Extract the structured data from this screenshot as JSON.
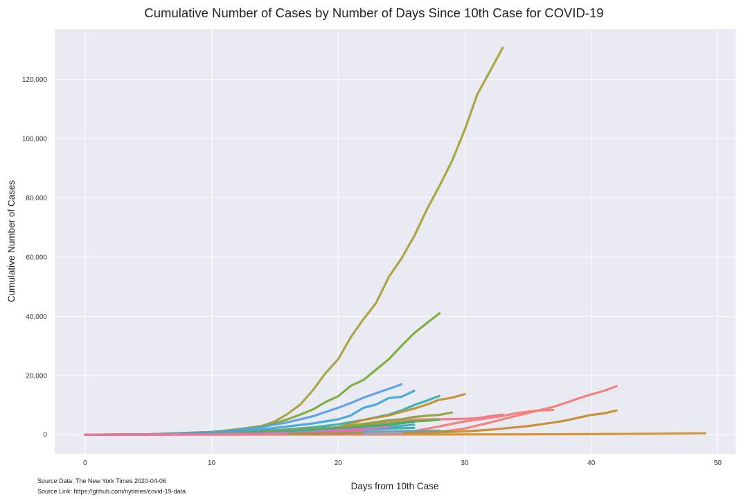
{
  "chart_data": {
    "type": "line",
    "title": "Cumulative Number of Cases by Number of Days Since 10th Case for COVID-19",
    "xlabel": "Days from 10th Case",
    "ylabel": "Cumulative Number of Cases",
    "xlim": [
      -2.4,
      51.4
    ],
    "ylim": [
      -6500,
      137000
    ],
    "x_ticks": [
      0,
      10,
      20,
      30,
      40,
      50
    ],
    "y_ticks": [
      0,
      20000,
      40000,
      60000,
      80000,
      100000,
      120000
    ],
    "y_tick_labels": [
      "0",
      "20,000",
      "40,000",
      "60,000",
      "80,000",
      "100,000",
      "120,000"
    ],
    "grid": true,
    "legend": "none",
    "background": "#eaeaf2",
    "series": [
      {
        "color": "#d28e2c",
        "x": [
          0,
          5,
          10,
          15,
          20,
          25,
          30,
          35,
          40,
          45,
          49
        ],
        "y": [
          10,
          20,
          35,
          45,
          55,
          70,
          90,
          130,
          200,
          330,
          500
        ]
      },
      {
        "color": "#c88b2d",
        "x": [
          0,
          10,
          20,
          24,
          26,
          28,
          30,
          32,
          33,
          35,
          37,
          38,
          40,
          41,
          42
        ],
        "y": [
          10,
          150,
          350,
          450,
          650,
          850,
          1100,
          1700,
          2100,
          2900,
          4100,
          4800,
          6700,
          7200,
          8200
        ]
      },
      {
        "color": "#f47b75",
        "x": [
          0,
          10,
          20,
          24,
          26,
          28,
          30,
          32,
          33,
          34,
          35,
          36,
          37,
          38,
          39,
          40,
          41,
          42
        ],
        "y": [
          10,
          100,
          250,
          350,
          500,
          900,
          2100,
          4100,
          5200,
          6300,
          7300,
          8400,
          9400,
          10800,
          12300,
          13600,
          14800,
          16400
        ]
      },
      {
        "color": "#f27c78",
        "x": [
          0,
          10,
          20,
          24,
          26,
          28,
          30,
          32,
          33,
          34,
          35,
          36,
          37
        ],
        "y": [
          10,
          120,
          350,
          600,
          1200,
          2800,
          4500,
          5700,
          6300,
          7200,
          7800,
          8200,
          8400
        ]
      },
      {
        "color": "#f6768a",
        "x": [
          0,
          10,
          18,
          20,
          22,
          24,
          25,
          26,
          27,
          28,
          29,
          30,
          31,
          32,
          33
        ],
        "y": [
          10,
          250,
          1000,
          1800,
          3200,
          4600,
          4900,
          5100,
          5200,
          5200,
          5300,
          5400,
          5600,
          6300,
          6800
        ]
      },
      {
        "color": "#a8a13c",
        "x": [
          0,
          5,
          10,
          12,
          14,
          15,
          16,
          17,
          18,
          19,
          20,
          21,
          22,
          23,
          24,
          25,
          26,
          27,
          28,
          29,
          30,
          31,
          32,
          33
        ],
        "y": [
          10,
          150,
          900,
          1800,
          3000,
          4500,
          7000,
          10200,
          15000,
          20800,
          25500,
          33000,
          39000,
          44500,
          53300,
          59500,
          67000,
          76000,
          84000,
          92500,
          103000,
          115000,
          122800,
          130700
        ]
      },
      {
        "color": "#7aab35",
        "x": [
          0,
          5,
          10,
          12,
          14,
          15,
          16,
          17,
          18,
          19,
          20,
          21,
          22,
          23,
          24,
          25,
          26,
          27,
          28
        ],
        "y": [
          10,
          150,
          900,
          1700,
          2800,
          3900,
          5200,
          6800,
          8500,
          11000,
          13000,
          16500,
          18500,
          22000,
          25500,
          30000,
          34300,
          37700,
          41000
        ]
      },
      {
        "color": "#5a9fe8",
        "x": [
          0,
          5,
          10,
          12,
          14,
          16,
          18,
          20,
          21,
          22,
          23,
          24,
          25
        ],
        "y": [
          10,
          150,
          900,
          1500,
          2600,
          4200,
          6200,
          9100,
          10700,
          12500,
          14000,
          15500,
          17000
        ]
      },
      {
        "color": "#3fa8d8",
        "x": [
          0,
          5,
          10,
          12,
          14,
          16,
          18,
          20,
          21,
          22,
          23,
          24,
          25,
          26
        ],
        "y": [
          10,
          120,
          700,
          1100,
          1800,
          2800,
          3800,
          5200,
          6500,
          9100,
          10200,
          12400,
          12800,
          14800
        ]
      },
      {
        "color": "#2fb3b0",
        "x": [
          0,
          5,
          10,
          15,
          18,
          20,
          22,
          24,
          25,
          26,
          27,
          28
        ],
        "y": [
          10,
          100,
          500,
          1500,
          2500,
          3500,
          5000,
          6800,
          8200,
          10000,
          11500,
          13100
        ]
      },
      {
        "color": "#c68e2f",
        "x": [
          0,
          10,
          20,
          22,
          24,
          25,
          26,
          27,
          28,
          29,
          30
        ],
        "y": [
          10,
          200,
          2500,
          5000,
          6500,
          7700,
          8800,
          10200,
          11800,
          12500,
          13700
        ]
      },
      {
        "color": "#8fa138",
        "x": [
          0,
          10,
          20,
          24,
          25,
          26,
          27,
          28,
          29
        ],
        "y": [
          10,
          150,
          2500,
          4900,
          5200,
          6000,
          6400,
          6700,
          7500
        ]
      },
      {
        "color": "#5fb043",
        "x": [
          0,
          10,
          20,
          24,
          25,
          26,
          27,
          28
        ],
        "y": [
          10,
          150,
          2000,
          3800,
          4200,
          4500,
          4700,
          5100
        ]
      },
      {
        "color": "#3fae5b",
        "x": [
          0,
          10,
          20,
          24,
          26
        ],
        "y": [
          10,
          150,
          1800,
          3300,
          4400
        ]
      },
      {
        "color": "#45a8cf",
        "x": [
          0,
          10,
          20,
          22,
          24,
          26
        ],
        "y": [
          10,
          120,
          1600,
          2100,
          2600,
          3400
        ]
      },
      {
        "color": "#35b1a0",
        "x": [
          0,
          10,
          20,
          24,
          26
        ],
        "y": [
          10,
          100,
          1200,
          2100,
          2300
        ]
      },
      {
        "color": "#5ca3e0",
        "x": [
          0,
          10,
          20,
          24,
          26,
          28
        ],
        "y": [
          10,
          120,
          800,
          1100,
          1300,
          1400
        ]
      },
      {
        "color": "#e36ed9",
        "x": [
          0,
          10,
          15,
          18,
          20,
          22,
          23,
          24
        ],
        "y": [
          10,
          150,
          450,
          900,
          1500,
          1900,
          2300,
          2600
        ]
      },
      {
        "color": "#ef6aa6",
        "x": [
          0,
          10,
          16,
          18,
          20,
          22
        ],
        "y": [
          10,
          120,
          450,
          700,
          1100,
          1600
        ]
      },
      {
        "color": "#9a9c3f",
        "x": [
          0,
          10,
          20,
          26,
          28,
          29
        ],
        "y": [
          10,
          100,
          500,
          900,
          1100,
          1200
        ]
      },
      {
        "color": "#a49fd8",
        "x": [
          22,
          24,
          25
        ],
        "y": [
          300,
          500,
          600
        ]
      },
      {
        "color": "#f472a0",
        "x": [
          0,
          10,
          14,
          16
        ],
        "y": [
          10,
          80,
          250,
          400
        ]
      }
    ]
  },
  "footer": {
    "source_data": "Source Data: The New York Times 2020-04-06",
    "source_link": "Source Link: https://github.com/nytimes/covid-19-data"
  }
}
